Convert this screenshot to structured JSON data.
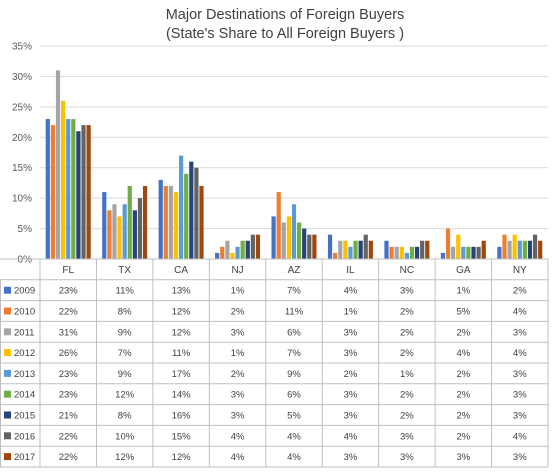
{
  "chart_data": {
    "type": "bar",
    "title": "Major Destinations of Foreign Buyers",
    "subtitle": "(State's Share to All Foreign Buyers )",
    "categories": [
      "FL",
      "TX",
      "CA",
      "NJ",
      "AZ",
      "IL",
      "NC",
      "GA",
      "NY"
    ],
    "ylim": [
      0,
      35
    ],
    "yticks": [
      "0%",
      "5%",
      "10%",
      "15%",
      "20%",
      "25%",
      "30%",
      "35%"
    ],
    "grid": true,
    "legend": "data-table",
    "series": [
      {
        "name": "2009",
        "color": "#4472C4",
        "values": [
          23,
          11,
          13,
          1,
          7,
          4,
          3,
          1,
          2
        ],
        "labels": [
          "23%",
          "11%",
          "13%",
          "1%",
          "7%",
          "4%",
          "3%",
          "1%",
          "2%"
        ]
      },
      {
        "name": "2010",
        "color": "#ED7D31",
        "values": [
          22,
          8,
          12,
          2,
          11,
          1,
          2,
          5,
          4
        ],
        "labels": [
          "22%",
          "8%",
          "12%",
          "2%",
          "11%",
          "1%",
          "2%",
          "5%",
          "4%"
        ]
      },
      {
        "name": "2011",
        "color": "#A5A5A5",
        "values": [
          31,
          9,
          12,
          3,
          6,
          3,
          2,
          2,
          3
        ],
        "labels": [
          "31%",
          "9%",
          "12%",
          "3%",
          "6%",
          "3%",
          "2%",
          "2%",
          "3%"
        ]
      },
      {
        "name": "2012",
        "color": "#FFC000",
        "values": [
          26,
          7,
          11,
          1,
          7,
          3,
          2,
          4,
          4
        ],
        "labels": [
          "26%",
          "7%",
          "11%",
          "1%",
          "7%",
          "3%",
          "2%",
          "4%",
          "4%"
        ]
      },
      {
        "name": "2013",
        "color": "#5B9BD5",
        "values": [
          23,
          9,
          17,
          2,
          9,
          2,
          1,
          2,
          3
        ],
        "labels": [
          "23%",
          "9%",
          "17%",
          "2%",
          "9%",
          "2%",
          "1%",
          "2%",
          "3%"
        ]
      },
      {
        "name": "2014",
        "color": "#70AD47",
        "values": [
          23,
          12,
          14,
          3,
          6,
          3,
          2,
          2,
          3
        ],
        "labels": [
          "23%",
          "12%",
          "14%",
          "3%",
          "6%",
          "3%",
          "2%",
          "2%",
          "3%"
        ]
      },
      {
        "name": "2015",
        "color": "#264478",
        "values": [
          21,
          8,
          16,
          3,
          5,
          3,
          2,
          2,
          3
        ],
        "labels": [
          "21%",
          "8%",
          "16%",
          "3%",
          "5%",
          "3%",
          "2%",
          "2%",
          "3%"
        ]
      },
      {
        "name": "2016",
        "color": "#636363",
        "values": [
          22,
          10,
          15,
          4,
          4,
          4,
          3,
          2,
          4
        ],
        "labels": [
          "22%",
          "10%",
          "15%",
          "4%",
          "4%",
          "4%",
          "3%",
          "2%",
          "4%"
        ]
      },
      {
        "name": "2017",
        "color": "#9E480E",
        "values": [
          22,
          12,
          12,
          4,
          4,
          3,
          3,
          3,
          3
        ],
        "labels": [
          "22%",
          "12%",
          "12%",
          "4%",
          "4%",
          "3%",
          "3%",
          "3%",
          "3%"
        ]
      }
    ]
  }
}
